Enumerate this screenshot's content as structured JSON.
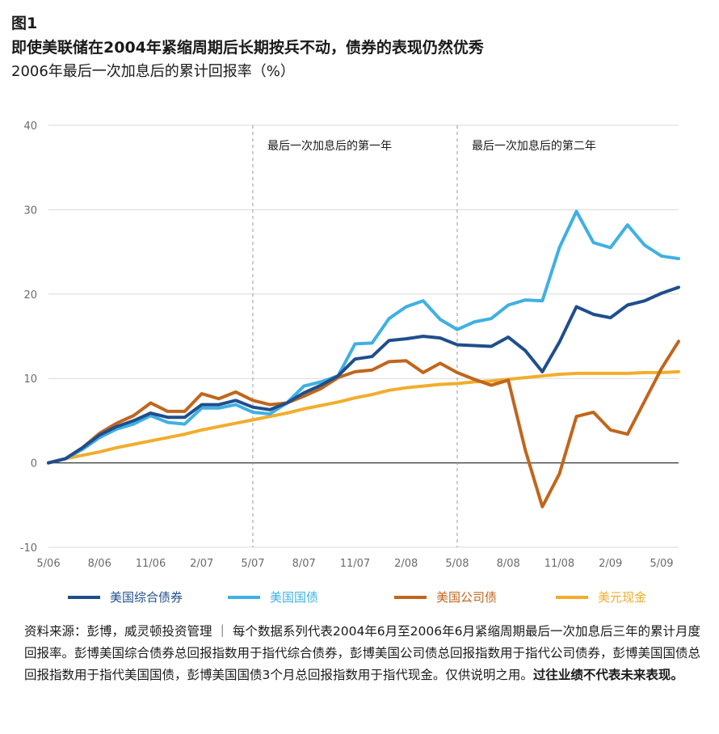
{
  "header": {
    "figure_label": "图1",
    "title": "即使美联储在2004年紧缩周期后长期按兵不动，债券的表现仍然优秀",
    "subtitle": "2006年最后一次加息后的累计回报率（%）"
  },
  "chart_data": {
    "type": "line",
    "title": "即使美联储在2004年紧缩周期后长期按兵不动，债券的表现仍然优秀",
    "subtitle": "2006年最后一次加息后的累计回报率（%）",
    "ylim": [
      -10,
      40
    ],
    "yticks": [
      -10,
      0,
      10,
      20,
      30,
      40
    ],
    "xlim": [
      0,
      37
    ],
    "xticks": [
      {
        "x": 0,
        "label": "5/06"
      },
      {
        "x": 3,
        "label": "8/06"
      },
      {
        "x": 6,
        "label": "11/06"
      },
      {
        "x": 9,
        "label": "2/07"
      },
      {
        "x": 12,
        "label": "5/07"
      },
      {
        "x": 15,
        "label": "8/07"
      },
      {
        "x": 18,
        "label": "11/07"
      },
      {
        "x": 21,
        "label": "2/08"
      },
      {
        "x": 24,
        "label": "5/08"
      },
      {
        "x": 27,
        "label": "8/08"
      },
      {
        "x": 30,
        "label": "11/08"
      },
      {
        "x": 33,
        "label": "2/09"
      },
      {
        "x": 36,
        "label": "5/09"
      }
    ],
    "grid": true,
    "legend": "bottom",
    "annotations": [
      {
        "x_start": 12,
        "x_end": 24,
        "label": "最后一次加息后的第一年"
      },
      {
        "x_start": 24,
        "x_end": 37,
        "label": "最后一次加息后的第二年"
      }
    ],
    "dividers": [
      12,
      24
    ],
    "series": [
      {
        "name": "美国综合债券",
        "color": "#1f4e8c",
        "values": [
          0,
          0.5,
          1.8,
          3.3,
          4.3,
          5.0,
          5.9,
          5.4,
          5.4,
          6.9,
          6.9,
          7.4,
          6.6,
          6.3,
          7.1,
          8.3,
          9.2,
          10.3,
          12.3,
          12.6,
          14.5,
          14.7,
          15.0,
          14.8,
          14.0,
          13.9,
          13.8,
          14.9,
          13.3,
          10.8,
          14.3,
          18.5,
          17.6,
          17.2,
          18.7,
          19.2,
          20.1,
          20.8
        ]
      },
      {
        "name": "美国国债",
        "color": "#3fb0e3",
        "values": [
          0,
          0.5,
          1.6,
          3.0,
          4.0,
          4.6,
          5.6,
          4.8,
          4.6,
          6.5,
          6.5,
          6.9,
          6.0,
          5.8,
          7.1,
          9.1,
          9.6,
          10.3,
          14.1,
          14.2,
          17.1,
          18.5,
          19.2,
          17.0,
          15.8,
          16.7,
          17.1,
          18.7,
          19.3,
          19.2,
          25.5,
          29.8,
          26.1,
          25.5,
          28.2,
          25.8,
          24.5,
          24.2
        ]
      },
      {
        "name": "美国公司债",
        "color": "#c0661c",
        "values": [
          0,
          0.5,
          1.8,
          3.5,
          4.7,
          5.6,
          7.1,
          6.1,
          6.1,
          8.2,
          7.6,
          8.4,
          7.4,
          6.9,
          7.1,
          7.9,
          8.8,
          10.1,
          10.8,
          11.0,
          12.0,
          12.1,
          10.7,
          11.8,
          10.7,
          9.9,
          9.2,
          9.8,
          1.5,
          -5.2,
          -1.3,
          5.5,
          6.0,
          3.9,
          3.4,
          7.3,
          11.2,
          14.4
        ]
      },
      {
        "name": "美元现金",
        "color": "#f2ad2c",
        "values": [
          0,
          0.5,
          0.9,
          1.3,
          1.8,
          2.2,
          2.6,
          3.0,
          3.4,
          3.9,
          4.3,
          4.7,
          5.1,
          5.5,
          5.9,
          6.4,
          6.8,
          7.2,
          7.7,
          8.1,
          8.6,
          8.9,
          9.1,
          9.3,
          9.4,
          9.6,
          9.7,
          9.9,
          10.1,
          10.3,
          10.5,
          10.6,
          10.6,
          10.6,
          10.6,
          10.7,
          10.7,
          10.8
        ]
      }
    ]
  },
  "footnote": {
    "text": "资料来源：彭博，威灵顿投资管理 ｜ 每个数据系列代表2004年6月至2006年6月紧缩周期最后一次加息后三年的累计月度回报率。彭博美国综合债券总回报指数用于指代综合债券，彭博美国公司债总回报指数用于指代公司债券，彭博美国国债总回报指数用于指代美国国债，彭博美国国债3个月总回报指数用于指代现金。仅供说明之用。",
    "bold_text": "过往业绩不代表未来表现。"
  },
  "colors": {
    "axis_zero": "#333333",
    "grid": "#d9d9d9",
    "divider": "#9a9a9a"
  }
}
